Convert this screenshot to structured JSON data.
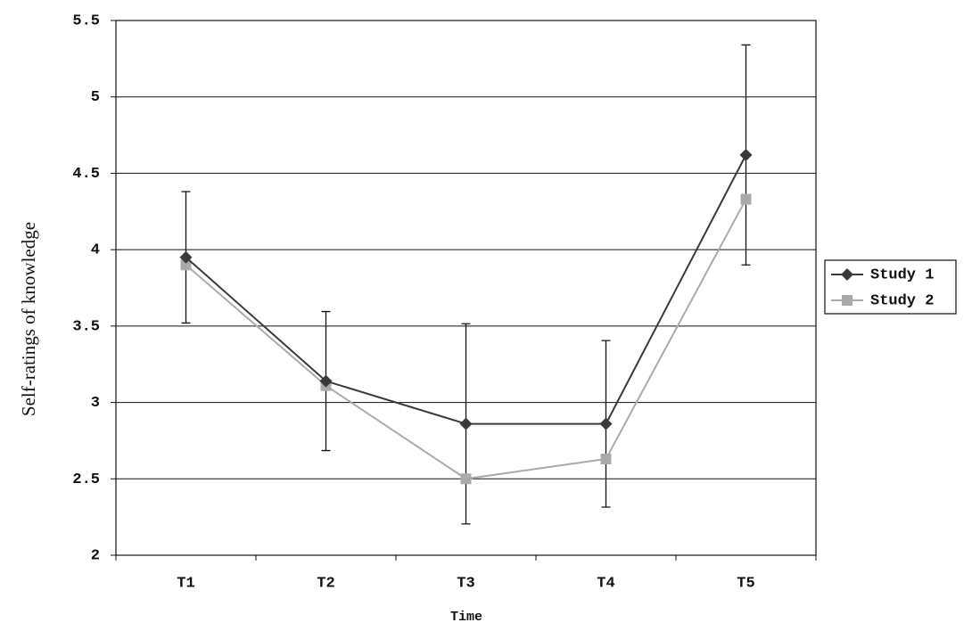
{
  "chart_data": {
    "type": "line",
    "x_label": "Time",
    "y_label": "Self-ratings of knowledge",
    "categories": [
      "T1",
      "T2",
      "T3",
      "T4",
      "T5"
    ],
    "series": [
      {
        "name": "Study 1",
        "color": "#3a3a3a",
        "marker": "diamond",
        "values": [
          3.95,
          3.14,
          2.86,
          2.86,
          4.62
        ],
        "error": [
          0.43,
          0.455,
          0.655,
          0.545,
          0.72
        ]
      },
      {
        "name": "Study 2",
        "color": "#aaaaaa",
        "marker": "square",
        "values": [
          3.9,
          3.11,
          2.5,
          2.63,
          4.33
        ]
      }
    ],
    "ylim": [
      2,
      5.5
    ],
    "yticks": [
      2,
      2.5,
      3,
      3.5,
      4,
      4.5,
      5,
      5.5
    ],
    "grid": true,
    "legend": "right"
  }
}
